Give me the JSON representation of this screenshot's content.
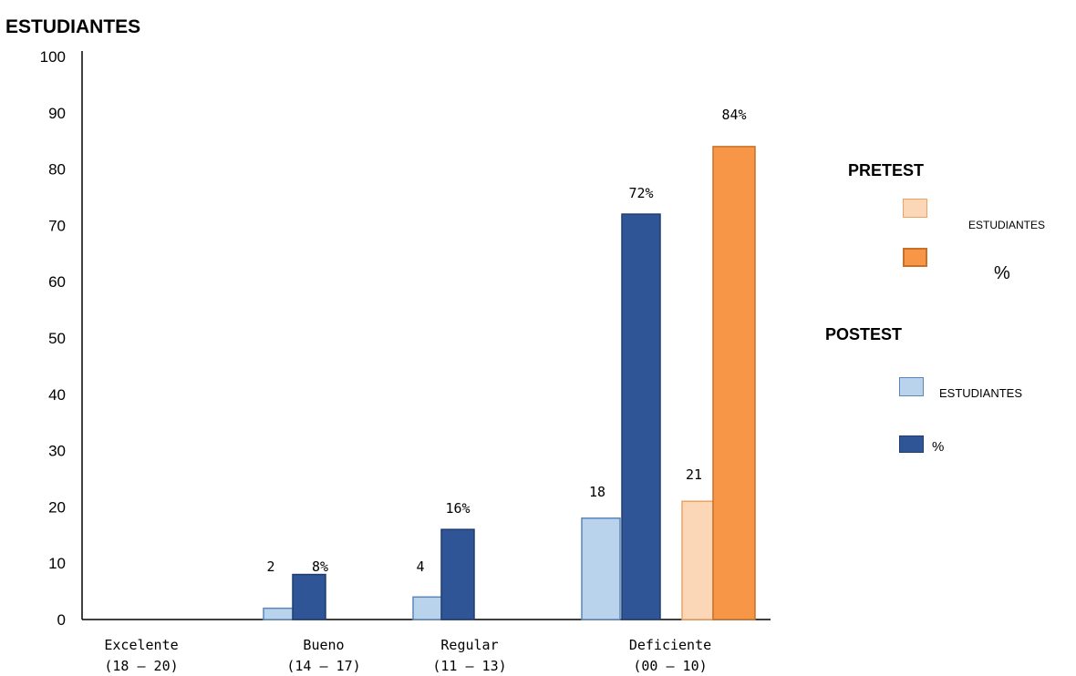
{
  "chart_data": {
    "type": "bar",
    "ylabel": "ESTUDIANTES",
    "ylim": [
      0,
      100
    ],
    "yticks": [
      0,
      10,
      20,
      30,
      40,
      50,
      60,
      70,
      80,
      90,
      100
    ],
    "categories": [
      [
        "Excelente",
        "(18 – 20)"
      ],
      [
        "Bueno",
        "(14 – 17)"
      ],
      [
        "Regular",
        "(11 – 13)"
      ],
      [
        "Deficiente",
        "(00 – 10)"
      ]
    ],
    "groups": [
      {
        "name": "PRETEST",
        "series": [
          {
            "name": "ESTUDIANTES",
            "color": "#fbd7b7",
            "border": "#f0a060",
            "values": [
              0,
              0,
              0,
              21
            ],
            "labels": [
              null,
              null,
              null,
              "21"
            ]
          },
          {
            "name": "%",
            "color": "#f79646",
            "border": "#c8702a",
            "values": [
              0,
              0,
              0,
              84
            ],
            "labels": [
              null,
              null,
              null,
              "84%"
            ]
          }
        ]
      },
      {
        "name": "POSTEST",
        "series": [
          {
            "name": "ESTUDIANTES",
            "color": "#b9d3ec",
            "border": "#5b87b8",
            "values": [
              0,
              2,
              4,
              18
            ],
            "labels": [
              null,
              "2",
              "4",
              "18"
            ]
          },
          {
            "name": "%",
            "color": "#2f5597",
            "border": "#1f3d70",
            "values": [
              0,
              8,
              16,
              72
            ],
            "labels": [
              null,
              "8%",
              "16%",
              "72%"
            ]
          }
        ]
      }
    ]
  }
}
